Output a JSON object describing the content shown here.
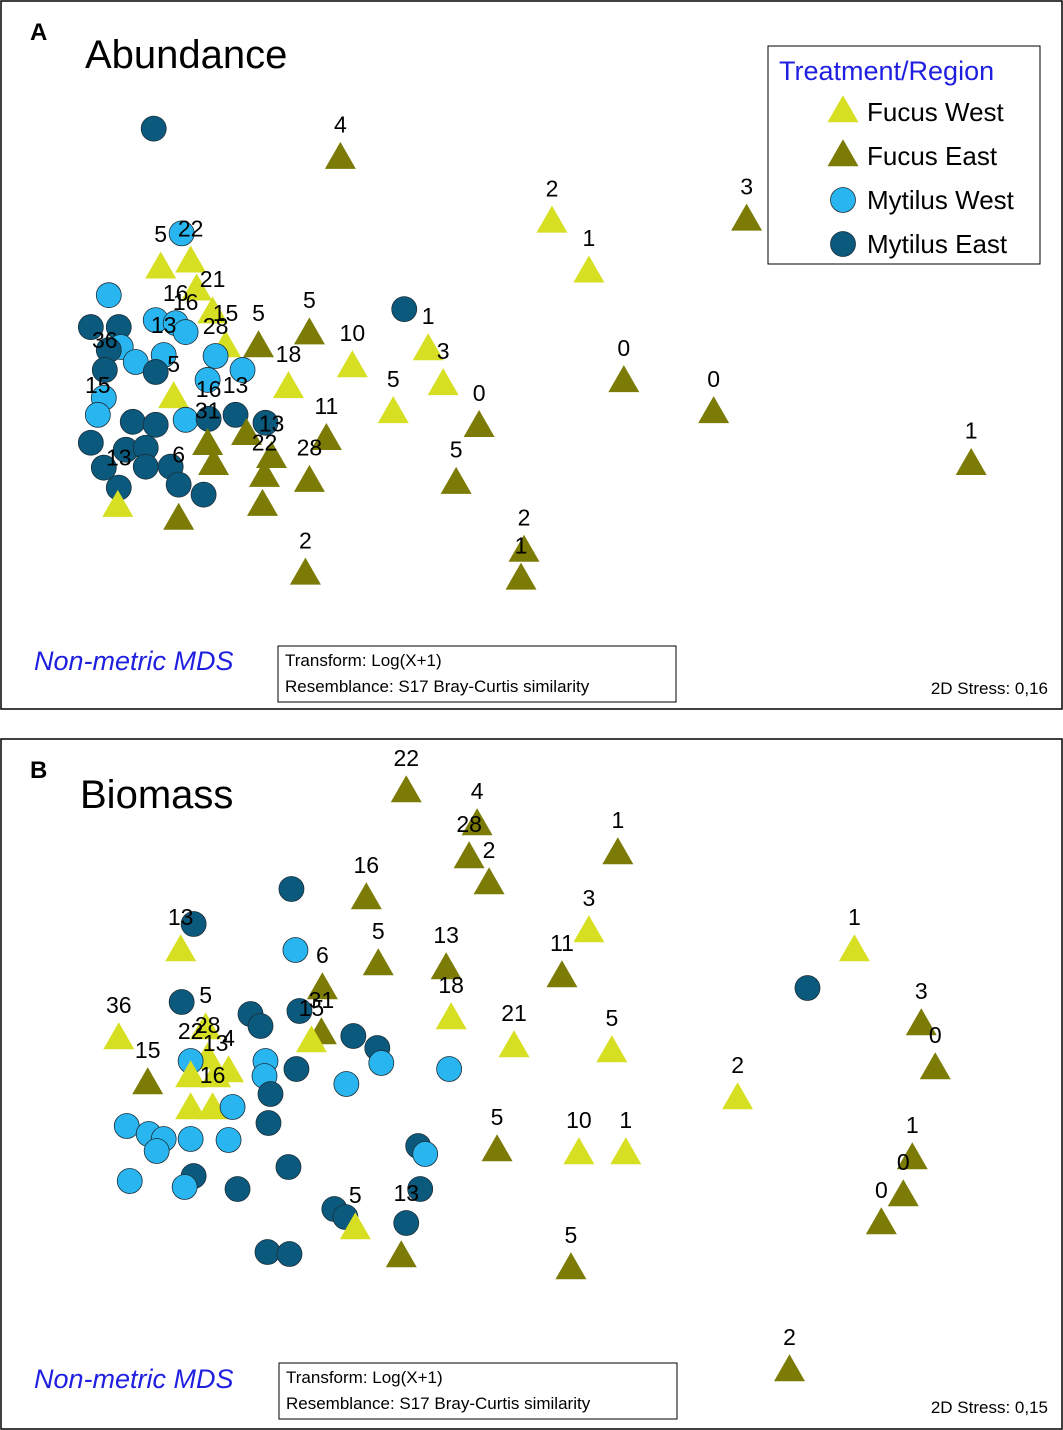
{
  "colors": {
    "Fucus West": "#d7df23",
    "Fucus East": "#7b7b05",
    "Mytilus West": "#29b6f0",
    "Mytilus East": "#0b5a7e",
    "method_text": "#1f1fe0"
  },
  "markers": {
    "Fucus West": "triangle",
    "Fucus East": "triangle",
    "Mytilus West": "circle",
    "Mytilus East": "circle"
  },
  "legend": {
    "title": "Treatment/Region",
    "items": [
      {
        "label": "Fucus West",
        "group": "Fucus West"
      },
      {
        "label": "Fucus East",
        "group": "Fucus East"
      },
      {
        "label": "Mytilus West",
        "group": "Mytilus West"
      },
      {
        "label": "Mytilus East",
        "group": "Mytilus East"
      }
    ]
  },
  "chart_data": [
    {
      "type": "scatter",
      "panel_label": "A",
      "title": "Abundance",
      "method": "Non-metric MDS",
      "transform": "Transform: Log(X+1)",
      "resemblance": "Resemblance: S17 Bray-Curtis similarity",
      "stress": "2D Stress: 0,16",
      "xlim": [
        0,
        1063
      ],
      "ylim": [
        0,
        710
      ],
      "points": [
        {
          "group": "Mytilus East",
          "x": 153,
          "y": 582
        },
        {
          "group": "Mytilus West",
          "x": 181,
          "y": 477
        },
        {
          "group": "Fucus East",
          "x": 340,
          "y": 552,
          "label": "4"
        },
        {
          "group": "Fucus West",
          "x": 552,
          "y": 488,
          "label": "2"
        },
        {
          "group": "Fucus West",
          "x": 589,
          "y": 438,
          "label": "1"
        },
        {
          "group": "Fucus East",
          "x": 747,
          "y": 490,
          "label": "3"
        },
        {
          "group": "Fucus West",
          "x": 160,
          "y": 442,
          "label": "5"
        },
        {
          "group": "Fucus West",
          "x": 190,
          "y": 448,
          "label": "22"
        },
        {
          "group": "Fucus West",
          "x": 196,
          "y": 420
        },
        {
          "group": "Mytilus West",
          "x": 108,
          "y": 415
        },
        {
          "group": "Mytilus East",
          "x": 90,
          "y": 383
        },
        {
          "group": "Mytilus East",
          "x": 118,
          "y": 383
        },
        {
          "group": "Mytilus West",
          "x": 155,
          "y": 390
        },
        {
          "group": "Mytilus West",
          "x": 175,
          "y": 387,
          "label": "16"
        },
        {
          "group": "Fucus West",
          "x": 212,
          "y": 397,
          "label": "21"
        },
        {
          "group": "Mytilus East",
          "x": 404,
          "y": 401
        },
        {
          "group": "Fucus East",
          "x": 309,
          "y": 376,
          "label": "5"
        },
        {
          "group": "Fucus East",
          "x": 258,
          "y": 363,
          "label": "5"
        },
        {
          "group": "Fucus West",
          "x": 225,
          "y": 363,
          "label": "15"
        },
        {
          "group": "Mytilus West",
          "x": 185,
          "y": 378,
          "label": "16"
        },
        {
          "group": "Mytilus West",
          "x": 120,
          "y": 363
        },
        {
          "group": "Mytilus East",
          "x": 108,
          "y": 360
        },
        {
          "group": "Mytilus West",
          "x": 215,
          "y": 354,
          "label": "28"
        },
        {
          "group": "Fucus West",
          "x": 428,
          "y": 360,
          "label": "1"
        },
        {
          "group": "Fucus West",
          "x": 352,
          "y": 343,
          "label": "10"
        },
        {
          "group": "Mytilus West",
          "x": 163,
          "y": 355,
          "label": "13"
        },
        {
          "group": "Mytilus West",
          "x": 135,
          "y": 348
        },
        {
          "group": "Mytilus West",
          "x": 242,
          "y": 340
        },
        {
          "group": "Mytilus East",
          "x": 104,
          "y": 340,
          "label": "36"
        },
        {
          "group": "Mytilus East",
          "x": 155,
          "y": 338
        },
        {
          "group": "Mytilus West",
          "x": 207,
          "y": 330
        },
        {
          "group": "Fucus West",
          "x": 288,
          "y": 322,
          "label": "18"
        },
        {
          "group": "Fucus West",
          "x": 443,
          "y": 325,
          "label": "3"
        },
        {
          "group": "Fucus East",
          "x": 624,
          "y": 328,
          "label": "0"
        },
        {
          "group": "Fucus East",
          "x": 714,
          "y": 297,
          "label": "0"
        },
        {
          "group": "Mytilus West",
          "x": 103,
          "y": 312
        },
        {
          "group": "Fucus West",
          "x": 173,
          "y": 312,
          "label": "5"
        },
        {
          "group": "Fucus West",
          "x": 393,
          "y": 297,
          "label": "5"
        },
        {
          "group": "Mytilus West",
          "x": 97,
          "y": 295,
          "label": "15"
        },
        {
          "group": "Mytilus East",
          "x": 132,
          "y": 288
        },
        {
          "group": "Mytilus East",
          "x": 155,
          "y": 285
        },
        {
          "group": "Mytilus West",
          "x": 185,
          "y": 290
        },
        {
          "group": "Mytilus East",
          "x": 235,
          "y": 295,
          "label": "13"
        },
        {
          "group": "Mytilus East",
          "x": 265,
          "y": 287
        },
        {
          "group": "Fucus East",
          "x": 479,
          "y": 283,
          "label": "0"
        },
        {
          "group": "Fucus East",
          "x": 326,
          "y": 270,
          "label": "11"
        },
        {
          "group": "Fucus East",
          "x": 246,
          "y": 275
        },
        {
          "group": "Mytilus East",
          "x": 208,
          "y": 291,
          "label": "16"
        },
        {
          "group": "Mytilus East",
          "x": 90,
          "y": 267
        },
        {
          "group": "Mytilus East",
          "x": 125,
          "y": 260
        },
        {
          "group": "Mytilus East",
          "x": 145,
          "y": 262
        },
        {
          "group": "Fucus East",
          "x": 207,
          "y": 265,
          "label": "31"
        },
        {
          "group": "Fucus East",
          "x": 271,
          "y": 252,
          "label": "13"
        },
        {
          "group": "Fucus East",
          "x": 972,
          "y": 245,
          "label": "1"
        },
        {
          "group": "Mytilus East",
          "x": 103,
          "y": 242
        },
        {
          "group": "Mytilus East",
          "x": 145,
          "y": 243
        },
        {
          "group": "Mytilus East",
          "x": 170,
          "y": 243
        },
        {
          "group": "Fucus East",
          "x": 213,
          "y": 245
        },
        {
          "group": "Fucus East",
          "x": 309,
          "y": 228,
          "label": "28"
        },
        {
          "group": "Fucus East",
          "x": 456,
          "y": 226,
          "label": "5"
        },
        {
          "group": "Mytilus East",
          "x": 118,
          "y": 222,
          "label": "13"
        },
        {
          "group": "Mytilus East",
          "x": 178,
          "y": 225,
          "label": "6"
        },
        {
          "group": "Mytilus East",
          "x": 203,
          "y": 215
        },
        {
          "group": "Fucus East",
          "x": 264,
          "y": 233,
          "label": "22"
        },
        {
          "group": "Fucus East",
          "x": 262,
          "y": 204
        },
        {
          "group": "Fucus West",
          "x": 117,
          "y": 203
        },
        {
          "group": "Fucus East",
          "x": 178,
          "y": 190
        },
        {
          "group": "Fucus East",
          "x": 524,
          "y": 158,
          "label": "2"
        },
        {
          "group": "Fucus East",
          "x": 521,
          "y": 130,
          "label": "1"
        },
        {
          "group": "Fucus East",
          "x": 305,
          "y": 135,
          "label": "2"
        }
      ]
    },
    {
      "type": "scatter",
      "panel_label": "B",
      "title": "Biomass",
      "method": "Non-metric MDS",
      "transform": "Transform: Log(X+1)",
      "resemblance": "Resemblance:  S17 Bray-Curtis similarity",
      "stress": "2D Stress: 0,15",
      "xlim": [
        0,
        1063
      ],
      "ylim": [
        0,
        690
      ],
      "points": [
        {
          "group": "Fucus East",
          "x": 406,
          "y": 637,
          "label": "22"
        },
        {
          "group": "Fucus East",
          "x": 477,
          "y": 604,
          "label": "4"
        },
        {
          "group": "Fucus East",
          "x": 469,
          "y": 571,
          "label": "28"
        },
        {
          "group": "Fucus East",
          "x": 489,
          "y": 545,
          "label": "2"
        },
        {
          "group": "Fucus East",
          "x": 618,
          "y": 575,
          "label": "1"
        },
        {
          "group": "Mytilus East",
          "x": 291,
          "y": 540
        },
        {
          "group": "Fucus East",
          "x": 366,
          "y": 530,
          "label": "16"
        },
        {
          "group": "Fucus West",
          "x": 589,
          "y": 497,
          "label": "3"
        },
        {
          "group": "Mytilus East",
          "x": 193,
          "y": 505
        },
        {
          "group": "Fucus West",
          "x": 180,
          "y": 478,
          "label": "13"
        },
        {
          "group": "Mytilus West",
          "x": 295,
          "y": 479
        },
        {
          "group": "Fucus East",
          "x": 378,
          "y": 464,
          "label": "5"
        },
        {
          "group": "Fucus East",
          "x": 446,
          "y": 460,
          "label": "13"
        },
        {
          "group": "Fucus East",
          "x": 562,
          "y": 452,
          "label": "11"
        },
        {
          "group": "Fucus West",
          "x": 855,
          "y": 478,
          "label": "1"
        },
        {
          "group": "Mytilus East",
          "x": 808,
          "y": 441
        },
        {
          "group": "Fucus East",
          "x": 322,
          "y": 440,
          "label": "6"
        },
        {
          "group": "Mytilus East",
          "x": 181,
          "y": 427
        },
        {
          "group": "Fucus West",
          "x": 205,
          "y": 400,
          "label": "5"
        },
        {
          "group": "Mytilus East",
          "x": 250,
          "y": 415
        },
        {
          "group": "Mytilus East",
          "x": 260,
          "y": 403
        },
        {
          "group": "Mytilus East",
          "x": 299,
          "y": 418
        },
        {
          "group": "Fucus East",
          "x": 321,
          "y": 395,
          "label": "31"
        },
        {
          "group": "Fucus West",
          "x": 311,
          "y": 387,
          "label": "15"
        },
        {
          "group": "Fucus West",
          "x": 451,
          "y": 410,
          "label": "18"
        },
        {
          "group": "Fucus East",
          "x": 922,
          "y": 404,
          "label": "3"
        },
        {
          "group": "Fucus West",
          "x": 118,
          "y": 390,
          "label": "36"
        },
        {
          "group": "Fucus West",
          "x": 207,
          "y": 370,
          "label": "28"
        },
        {
          "group": "Mytilus East",
          "x": 353,
          "y": 393
        },
        {
          "group": "Fucus West",
          "x": 514,
          "y": 382,
          "label": "21"
        },
        {
          "group": "Fucus West",
          "x": 612,
          "y": 377,
          "label": "5"
        },
        {
          "group": "Mytilus East",
          "x": 377,
          "y": 381
        },
        {
          "group": "Mytilus West",
          "x": 190,
          "y": 368,
          "label": "22"
        },
        {
          "group": "Fucus West",
          "x": 228,
          "y": 357,
          "label": "4"
        },
        {
          "group": "Fucus West",
          "x": 215,
          "y": 352,
          "label": "13"
        },
        {
          "group": "Mytilus West",
          "x": 265,
          "y": 368
        },
        {
          "group": "Mytilus West",
          "x": 381,
          "y": 366
        },
        {
          "group": "Fucus East",
          "x": 936,
          "y": 360,
          "label": "0"
        },
        {
          "group": "Fucus East",
          "x": 147,
          "y": 345,
          "label": "15"
        },
        {
          "group": "Fucus West",
          "x": 190,
          "y": 352
        },
        {
          "group": "Mytilus East",
          "x": 296,
          "y": 360
        },
        {
          "group": "Mytilus West",
          "x": 264,
          "y": 353
        },
        {
          "group": "Mytilus West",
          "x": 449,
          "y": 360
        },
        {
          "group": "Mytilus West",
          "x": 346,
          "y": 345
        },
        {
          "group": "Fucus West",
          "x": 212,
          "y": 320,
          "label": "16"
        },
        {
          "group": "Mytilus East",
          "x": 270,
          "y": 335
        },
        {
          "group": "Fucus West",
          "x": 738,
          "y": 330,
          "label": "2"
        },
        {
          "group": "Fucus West",
          "x": 190,
          "y": 320
        },
        {
          "group": "Mytilus West",
          "x": 232,
          "y": 322
        },
        {
          "group": "Mytilus West",
          "x": 126,
          "y": 303
        },
        {
          "group": "Mytilus West",
          "x": 148,
          "y": 295
        },
        {
          "group": "Mytilus West",
          "x": 163,
          "y": 290
        },
        {
          "group": "Mytilus West",
          "x": 190,
          "y": 290
        },
        {
          "group": "Mytilus West",
          "x": 228,
          "y": 289
        },
        {
          "group": "Mytilus East",
          "x": 268,
          "y": 306
        },
        {
          "group": "Fucus East",
          "x": 497,
          "y": 278,
          "label": "5"
        },
        {
          "group": "Fucus West",
          "x": 579,
          "y": 275,
          "label": "10"
        },
        {
          "group": "Fucus West",
          "x": 626,
          "y": 275,
          "label": "1"
        },
        {
          "group": "Mytilus East",
          "x": 418,
          "y": 283
        },
        {
          "group": "Mytilus West",
          "x": 425,
          "y": 275
        },
        {
          "group": "Mytilus West",
          "x": 156,
          "y": 278
        },
        {
          "group": "Fucus East",
          "x": 913,
          "y": 270,
          "label": "1"
        },
        {
          "group": "Mytilus East",
          "x": 288,
          "y": 262
        },
        {
          "group": "Mytilus East",
          "x": 193,
          "y": 253
        },
        {
          "group": "Mytilus West",
          "x": 129,
          "y": 248
        },
        {
          "group": "Mytilus West",
          "x": 184,
          "y": 242
        },
        {
          "group": "Mytilus East",
          "x": 420,
          "y": 240
        },
        {
          "group": "Fucus East",
          "x": 904,
          "y": 233,
          "label": "0"
        },
        {
          "group": "Mytilus East",
          "x": 237,
          "y": 240
        },
        {
          "group": "Mytilus East",
          "x": 334,
          "y": 220
        },
        {
          "group": "Mytilus East",
          "x": 345,
          "y": 212
        },
        {
          "group": "Fucus West",
          "x": 355,
          "y": 200,
          "label": "5"
        },
        {
          "group": "Fucus East",
          "x": 882,
          "y": 205,
          "label": "0"
        },
        {
          "group": "Mytilus East",
          "x": 406,
          "y": 206,
          "label": "13"
        },
        {
          "group": "Fucus East",
          "x": 401,
          "y": 172
        },
        {
          "group": "Mytilus East",
          "x": 267,
          "y": 177
        },
        {
          "group": "Mytilus East",
          "x": 289,
          "y": 175
        },
        {
          "group": "Fucus East",
          "x": 571,
          "y": 160,
          "label": "5"
        },
        {
          "group": "Fucus East",
          "x": 790,
          "y": 58,
          "label": "2"
        }
      ]
    }
  ]
}
